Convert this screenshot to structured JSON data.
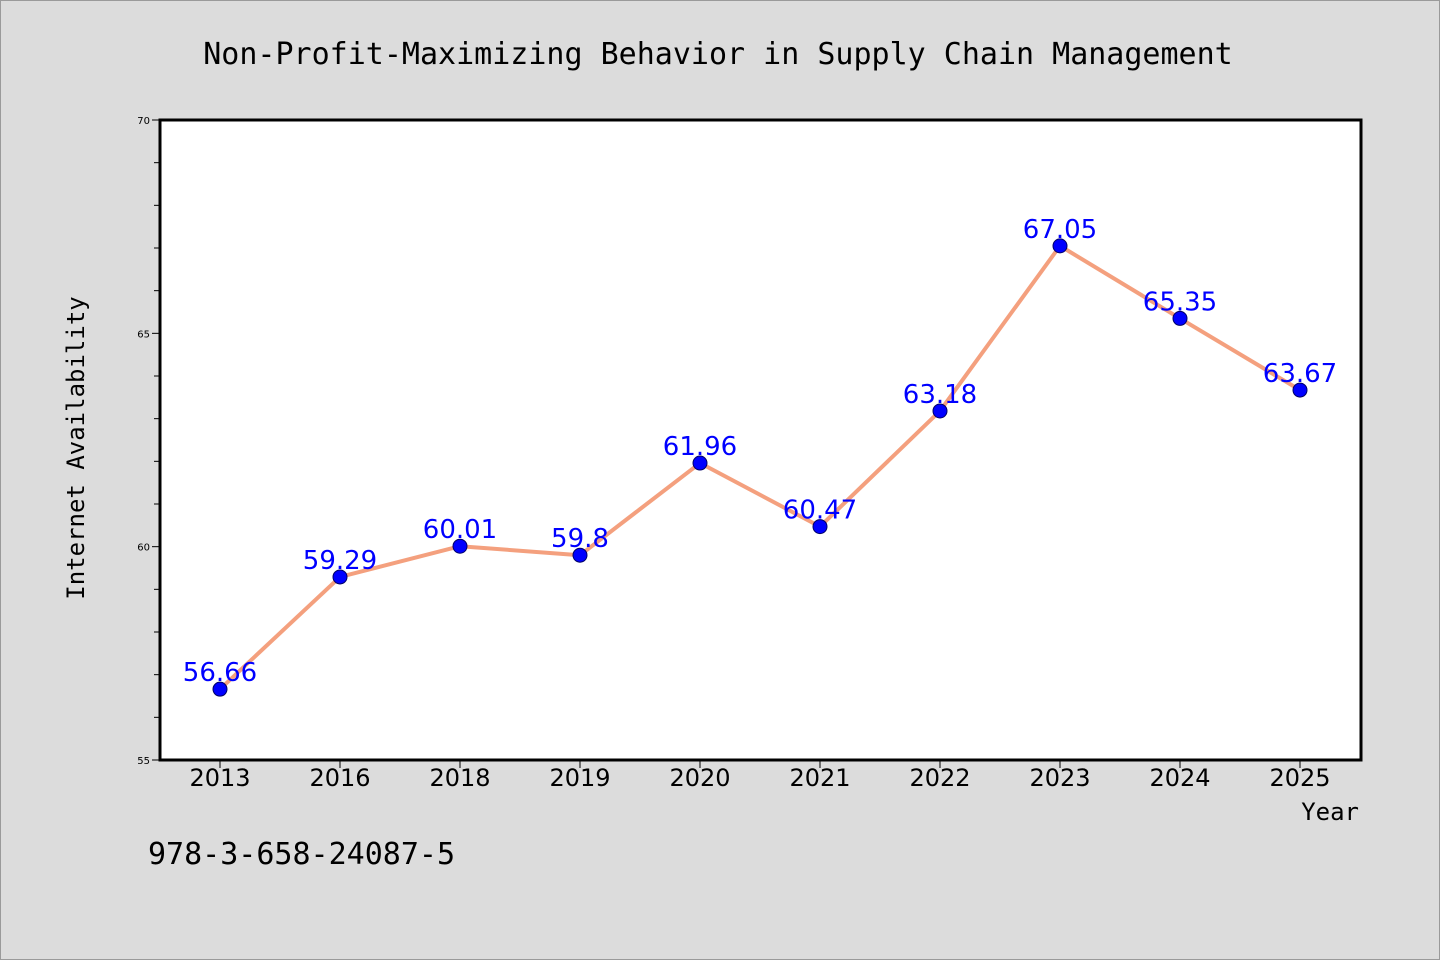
{
  "chart_data": {
    "type": "line",
    "title": "Non-Profit-Maximizing Behavior in Supply Chain Management",
    "xlabel": "Year",
    "ylabel": "Internet Availability",
    "categories": [
      "2013",
      "2016",
      "2018",
      "2019",
      "2020",
      "2021",
      "2022",
      "2023",
      "2024",
      "2025"
    ],
    "values": [
      56.66,
      59.29,
      60.01,
      59.8,
      61.96,
      60.47,
      63.18,
      67.05,
      65.35,
      63.67
    ],
    "data_labels": [
      "56.66",
      "59.29",
      "60.01",
      "59.8",
      "61.96",
      "60.47",
      "63.18",
      "67.05",
      "65.35",
      "63.67"
    ],
    "ylim": [
      55,
      70
    ],
    "y_major_ticks": [
      55,
      60,
      65,
      70
    ],
    "y_minor_step": 1,
    "grid": false,
    "legend": "none",
    "colors": {
      "line": "#f4a07e",
      "marker": "#0000ff",
      "marker_edge": "#000066",
      "data_label": "#0000ff",
      "plot_background": "#ffffff",
      "page_background": "#dcdcdc"
    }
  },
  "footer": {
    "isbn": "978-3-658-24087-5"
  }
}
